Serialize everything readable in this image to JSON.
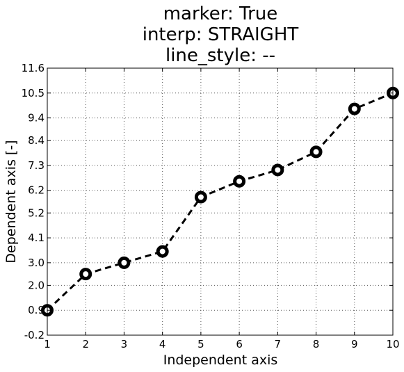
{
  "chart_data": {
    "type": "line",
    "title_lines": [
      "marker: True",
      "interp: STRAIGHT",
      "line_style: --"
    ],
    "xlabel": "Independent axis",
    "ylabel": "Dependent axis [-]",
    "xlim": [
      1,
      10
    ],
    "ylim": [
      -0.2,
      11.6
    ],
    "x_ticks": [
      "1",
      "2",
      "3",
      "4",
      "5",
      "6",
      "7",
      "8",
      "9",
      "10"
    ],
    "y_ticks": [
      "-0.2",
      "0.9",
      "2.0",
      "3.0",
      "4.1",
      "5.2",
      "6.2",
      "7.3",
      "8.4",
      "9.4",
      "10.5",
      "11.6"
    ],
    "grid": true,
    "series": [
      {
        "x": [
          1,
          2,
          3,
          4,
          5,
          6,
          7,
          8,
          9,
          10
        ],
        "y": [
          0.9,
          2.5,
          3.0,
          3.5,
          5.9,
          6.6,
          7.1,
          7.9,
          9.8,
          10.5
        ],
        "line_style": "dashed",
        "marker": "circle",
        "color": "#000000"
      }
    ]
  }
}
